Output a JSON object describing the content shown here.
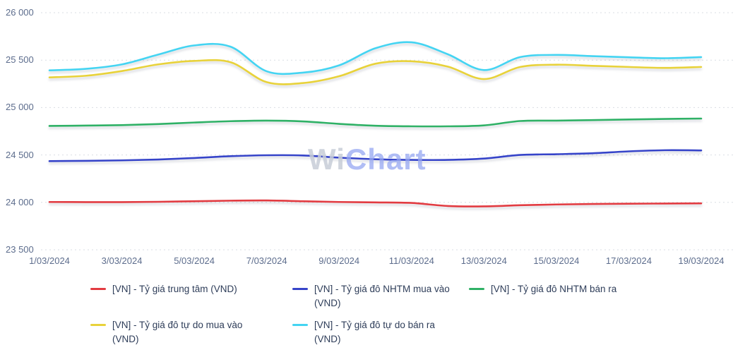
{
  "watermark": {
    "part1": "Wi",
    "part2": "Chart"
  },
  "axis": {
    "y_tick_labels": [
      "26 000",
      "25 500",
      "25 000",
      "24 500",
      "24 000",
      "23 500"
    ],
    "x_tick_labels": [
      "1/03/2024",
      "3/03/2024",
      "5/03/2024",
      "7/03/2024",
      "9/03/2024",
      "11/03/2024",
      "13/03/2024",
      "15/03/2024",
      "17/03/2024",
      "19/03/2024"
    ]
  },
  "chart_data": {
    "type": "line",
    "title": "",
    "xlabel": "",
    "ylabel": "",
    "ylim": [
      23500,
      26000
    ],
    "grid": "horizontal-dotted",
    "legend_position": "bottom",
    "x_unit": "day of March 2024",
    "x": [
      1,
      2,
      3,
      4,
      5,
      6,
      7,
      8,
      9,
      10,
      11,
      12,
      13,
      14,
      15,
      16,
      17,
      18,
      19
    ],
    "y_ticks": [
      26000,
      25500,
      25000,
      24500,
      24000,
      23500
    ],
    "x_tick_days": [
      1,
      3,
      5,
      7,
      9,
      11,
      13,
      15,
      17,
      19
    ],
    "x_tick_labels": [
      "1/03/2024",
      "3/03/2024",
      "5/03/2024",
      "7/03/2024",
      "9/03/2024",
      "11/03/2024",
      "13/03/2024",
      "15/03/2024",
      "17/03/2024",
      "19/03/2024"
    ],
    "series": [
      {
        "name": "[VN] - Tỷ giá trung tâm (VND)",
        "color": "#e23b41",
        "values": [
          24004,
          24003,
          24003,
          24006,
          24012,
          24018,
          24020,
          24012,
          24004,
          24000,
          23994,
          23962,
          23958,
          23970,
          23978,
          23983,
          23986,
          23988,
          23990
        ]
      },
      {
        "name": "[VN] - Tỷ giá đô NHTM mua vào (VND)",
        "color": "#3644c9",
        "values": [
          24435,
          24438,
          24443,
          24452,
          24468,
          24487,
          24497,
          24495,
          24472,
          24455,
          24448,
          24448,
          24462,
          24500,
          24508,
          24518,
          24538,
          24550,
          24548
        ]
      },
      {
        "name": "[VN] - Tỷ giá đô NHTM bán ra",
        "color": "#2fb166",
        "values": [
          24806,
          24810,
          24815,
          24826,
          24842,
          24856,
          24862,
          24854,
          24828,
          24808,
          24802,
          24802,
          24812,
          24858,
          24862,
          24868,
          24874,
          24880,
          24884
        ]
      },
      {
        "name": "[VN] - Tỷ giá đô tự do mua vào (VND)",
        "color": "#e8d23a",
        "values": [
          25318,
          25335,
          25385,
          25455,
          25492,
          25478,
          25268,
          25258,
          25330,
          25462,
          25488,
          25432,
          25300,
          25428,
          25452,
          25440,
          25428,
          25418,
          25428
        ]
      },
      {
        "name": "[VN] - Tỷ giá đô tự do bán ra (VND)",
        "color": "#44d4f2",
        "values": [
          25392,
          25408,
          25455,
          25558,
          25655,
          25642,
          25382,
          25368,
          25445,
          25625,
          25688,
          25562,
          25395,
          25532,
          25555,
          25542,
          25530,
          25520,
          25532
        ]
      }
    ]
  }
}
